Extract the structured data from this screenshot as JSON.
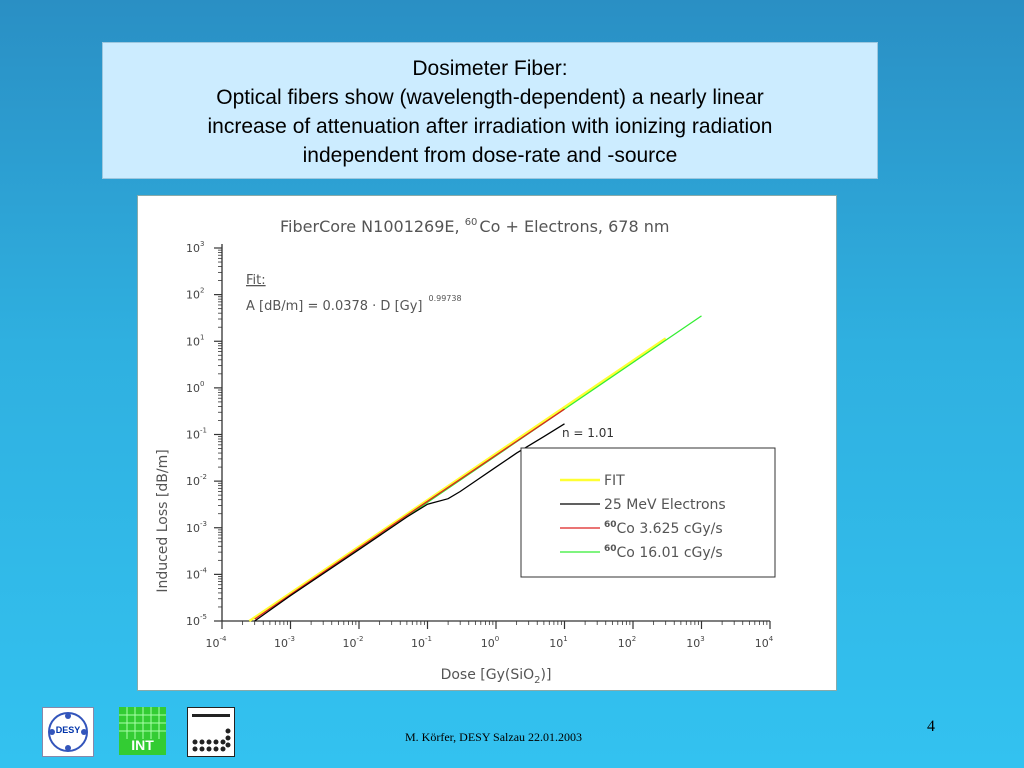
{
  "slide": {
    "title_lines": [
      "Dosimeter Fiber:",
      "Optical fibers show (wavelength-dependent) a nearly linear",
      "increase of attenuation after irradiation with ionizing radiation",
      "independent from dose-rate and -source"
    ],
    "footer": "M. Körfer, DESY   Salzau 22.01.2003",
    "page_number": "4",
    "logos": {
      "desy": "DESY",
      "int": "INT"
    }
  },
  "chart_data": {
    "type": "line",
    "title_prefix": "FiberCore N1001269E, ",
    "title_sup": "60",
    "title_suffix": "Co + Electrons, 678 nm",
    "xlabel_main": "Dose [Gy(SiO",
    "xlabel_sub": "2",
    "xlabel_end": ")]",
    "ylabel": "Induced Loss [dB/m]",
    "x_scale": "log",
    "y_scale": "log",
    "xlim": [
      0.0001,
      10000
    ],
    "ylim": [
      1e-05,
      1000
    ],
    "x_ticks": [
      {
        "base": "10",
        "exp": "-4"
      },
      {
        "base": "10",
        "exp": "-3"
      },
      {
        "base": "10",
        "exp": "-2"
      },
      {
        "base": "10",
        "exp": "-1"
      },
      {
        "base": "10",
        "exp": "0"
      },
      {
        "base": "10",
        "exp": "1"
      },
      {
        "base": "10",
        "exp": "2"
      },
      {
        "base": "10",
        "exp": "3"
      },
      {
        "base": "10",
        "exp": "4"
      }
    ],
    "y_ticks": [
      {
        "base": "10",
        "exp": "-5"
      },
      {
        "base": "10",
        "exp": "-4"
      },
      {
        "base": "10",
        "exp": "-3"
      },
      {
        "base": "10",
        "exp": "-2"
      },
      {
        "base": "10",
        "exp": "-1"
      },
      {
        "base": "10",
        "exp": "0"
      },
      {
        "base": "10",
        "exp": "1"
      },
      {
        "base": "10",
        "exp": "2"
      },
      {
        "base": "10",
        "exp": "3"
      }
    ],
    "fit_label": "Fit:",
    "fit_formula": "A [dB/m] = 0.0378 · D [Gy]",
    "fit_exponent": "0.99738",
    "annotation": "n = 1.01",
    "legend_position": "lower-right",
    "series": [
      {
        "name": "FIT",
        "color": "#ffff33",
        "x": [
          0.00025,
          300
        ],
        "y": [
          1e-05,
          11.5
        ]
      },
      {
        "name": "25 MeV Electrons",
        "sup": "",
        "color": "#000000",
        "x": [
          0.0003,
          0.001,
          0.01,
          0.05,
          0.1,
          0.2,
          0.3,
          0.5,
          1,
          2,
          5,
          10
        ],
        "y": [
          1e-05,
          3.5e-05,
          0.00034,
          0.0017,
          0.0032,
          0.0042,
          0.006,
          0.01,
          0.02,
          0.04,
          0.09,
          0.17
        ]
      },
      {
        "name": "Co 3.625 cGy/s",
        "sup": "60",
        "color": "#dd2222",
        "x": [
          0.0003,
          0.001,
          0.01,
          0.1,
          1,
          10
        ],
        "y": [
          1.1e-05,
          3.7e-05,
          0.00037,
          0.0037,
          0.036,
          0.35
        ]
      },
      {
        "name": "Co 16.01 cGy/s",
        "sup": "60",
        "color": "#33ee33",
        "x": [
          0.0005,
          0.001,
          0.01,
          0.1,
          1,
          10,
          100,
          1000
        ],
        "y": [
          1.8e-05,
          3.5e-05,
          0.00035,
          0.0035,
          0.035,
          0.35,
          3.5,
          35
        ]
      }
    ]
  }
}
